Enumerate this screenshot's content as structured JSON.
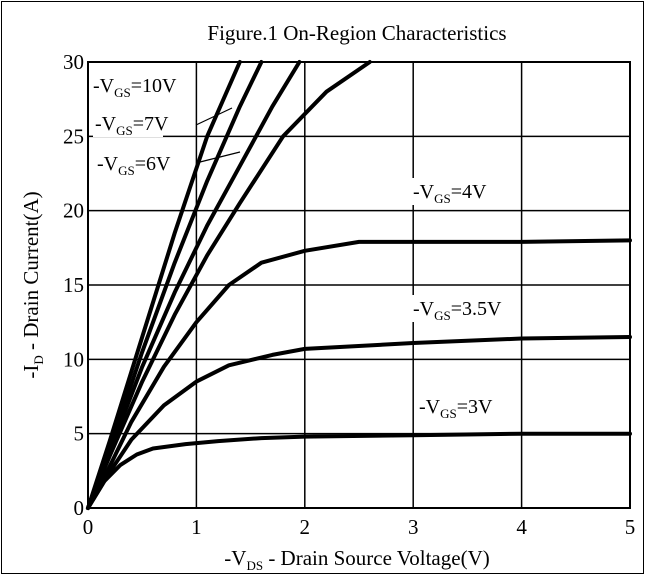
{
  "chart_data": {
    "type": "line",
    "title": "Figure.1 On-Region Characteristics",
    "xlabel": {
      "prefix": "-V",
      "sub": "DS",
      "suffix": " - Drain Source Voltage(V)"
    },
    "ylabel": {
      "prefix": "-I",
      "sub": "D",
      "suffix": " - Drain Current(A)"
    },
    "xlim": [
      0,
      5
    ],
    "ylim": [
      0,
      30
    ],
    "xticks": [
      "0",
      "1",
      "2",
      "3",
      "4",
      "5"
    ],
    "yticks": [
      "0",
      "5",
      "10",
      "15",
      "20",
      "25",
      "30"
    ],
    "grid": true,
    "legend": "inline labels",
    "series": [
      {
        "label": {
          "prefix": "-V",
          "sub": "GS",
          "suffix": "=10V"
        },
        "x": [
          0,
          0.2,
          0.5,
          0.8,
          1.1,
          1.4
        ],
        "y": [
          0,
          4.5,
          11.5,
          18.5,
          25,
          30
        ]
      },
      {
        "label": {
          "prefix": "-V",
          "sub": "GS",
          "suffix": "=7V"
        },
        "x": [
          0,
          0.2,
          0.5,
          0.8,
          1.1,
          1.4,
          1.6
        ],
        "y": [
          0,
          4,
          10.5,
          16.5,
          22,
          27,
          30
        ]
      },
      {
        "label": {
          "prefix": "-V",
          "sub": "GS",
          "suffix": "=6V"
        },
        "x": [
          0,
          0.2,
          0.5,
          0.8,
          1.1,
          1.4,
          1.7,
          1.95
        ],
        "y": [
          0,
          3.8,
          9.5,
          14.5,
          19,
          23,
          27,
          30
        ]
      },
      {
        "label": {
          "prefix": "-V",
          "sub": "GS",
          "suffix": ""
        },
        "x": [
          0,
          0.2,
          0.5,
          0.8,
          1.1,
          1.4,
          1.8,
          2.2,
          2.6
        ],
        "y": [
          0,
          3.5,
          8.5,
          13,
          17,
          20.5,
          25,
          28,
          30
        ]
      },
      {
        "label": {
          "prefix": "-V",
          "sub": "GS",
          "suffix": "=4V"
        },
        "x": [
          0,
          0.2,
          0.4,
          0.7,
          1.0,
          1.3,
          1.6,
          2.0,
          2.5,
          3.0,
          4.0,
          5.0
        ],
        "y": [
          0,
          2.8,
          5.8,
          9.5,
          12.5,
          15,
          16.5,
          17.3,
          17.9,
          17.9,
          17.9,
          18.0
        ]
      },
      {
        "label": {
          "prefix": "-V",
          "sub": "GS",
          "suffix": "=3.5V"
        },
        "x": [
          0,
          0.2,
          0.4,
          0.7,
          1.0,
          1.3,
          1.7,
          2.0,
          3.0,
          4.0,
          5.0
        ],
        "y": [
          0,
          2.4,
          4.6,
          6.9,
          8.5,
          9.6,
          10.3,
          10.7,
          11.1,
          11.4,
          11.5
        ]
      },
      {
        "label": {
          "prefix": "-V",
          "sub": "GS",
          "suffix": "=3V"
        },
        "x": [
          0,
          0.15,
          0.3,
          0.45,
          0.6,
          0.9,
          1.2,
          1.6,
          2.0,
          3.0,
          4.0,
          5.0
        ],
        "y": [
          0,
          1.8,
          2.9,
          3.6,
          4.0,
          4.3,
          4.5,
          4.7,
          4.8,
          4.9,
          5.0,
          5.0
        ]
      }
    ]
  }
}
